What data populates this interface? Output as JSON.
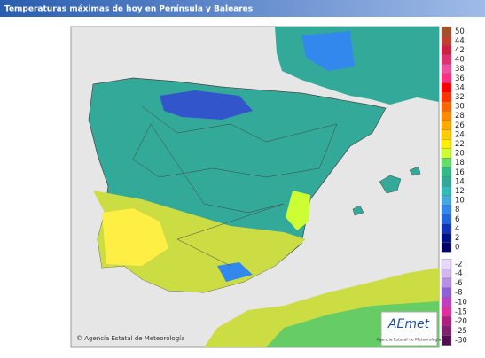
{
  "header": {
    "title": "Temperaturas máximas de hoy en Península y Baleares"
  },
  "legend": {
    "items": [
      {
        "value": 50,
        "color": "#a0522d"
      },
      {
        "value": 44,
        "color": "#c04030"
      },
      {
        "value": 42,
        "color": "#d02040"
      },
      {
        "value": 40,
        "color": "#e03070"
      },
      {
        "value": 38,
        "color": "#f050a0"
      },
      {
        "value": 36,
        "color": "#ff3080"
      },
      {
        "value": 34,
        "color": "#ff0000"
      },
      {
        "value": 32,
        "color": "#ff3300"
      },
      {
        "value": 30,
        "color": "#ff6600"
      },
      {
        "value": 28,
        "color": "#ff8c00"
      },
      {
        "value": 26,
        "color": "#ffaa00"
      },
      {
        "value": 24,
        "color": "#ffcc00"
      },
      {
        "value": 22,
        "color": "#ffee00"
      },
      {
        "value": 20,
        "color": "#ccff33"
      },
      {
        "value": 18,
        "color": "#66dd66"
      },
      {
        "value": 16,
        "color": "#33bb88"
      },
      {
        "value": 14,
        "color": "#33aa99"
      },
      {
        "value": 12,
        "color": "#33bbbb"
      },
      {
        "value": 10,
        "color": "#44aadd"
      },
      {
        "value": 8,
        "color": "#3388ee"
      },
      {
        "value": 6,
        "color": "#2266dd"
      },
      {
        "value": 4,
        "color": "#1133bb"
      },
      {
        "value": 2,
        "color": "#001188"
      },
      {
        "value": 0,
        "color": "#000066"
      },
      {
        "value": -2,
        "color": "#e8d8f8"
      },
      {
        "value": -4,
        "color": "#d0b8f0"
      },
      {
        "value": -6,
        "color": "#b890e8"
      },
      {
        "value": -8,
        "color": "#9060d8"
      },
      {
        "value": -10,
        "color": "#c040c0"
      },
      {
        "value": -15,
        "color": "#e030a0"
      },
      {
        "value": -20,
        "color": "#b02080"
      },
      {
        "value": -25,
        "color": "#802070"
      },
      {
        "value": -30,
        "color": "#501050"
      }
    ]
  },
  "credit": "© Agencia Estatal de Meteorología",
  "logo": {
    "name": "AEmet",
    "caption": "Agencia Estatal de Meteorología"
  }
}
